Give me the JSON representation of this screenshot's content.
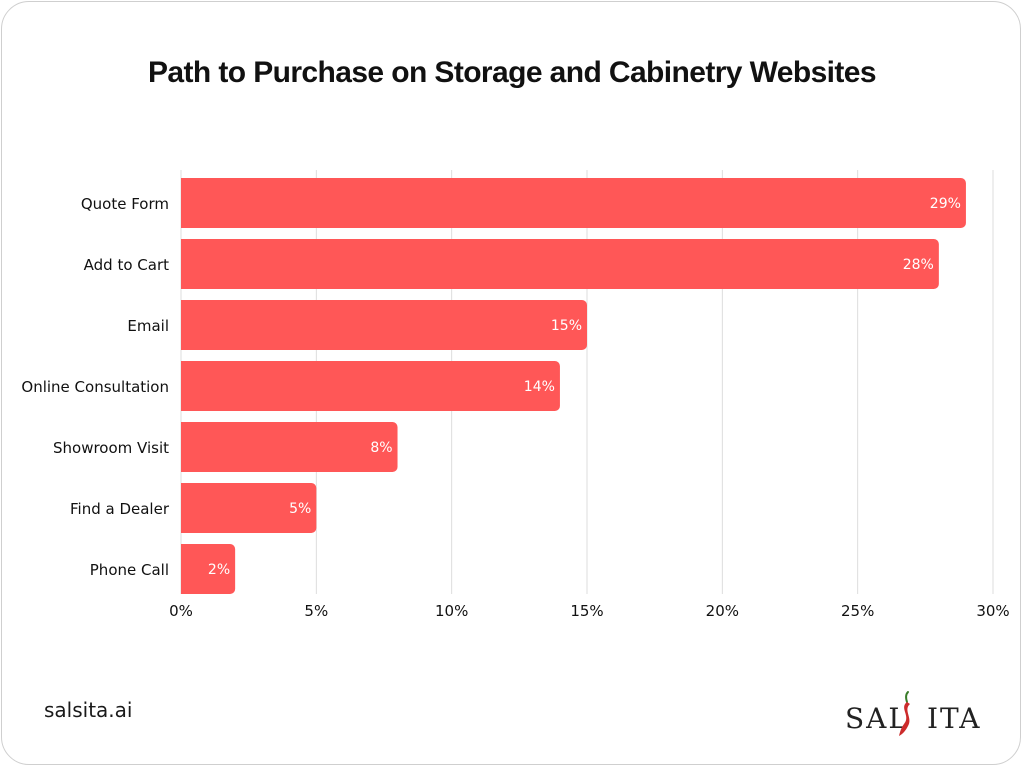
{
  "colors": {
    "bar": "#ff5757",
    "grid": "#dddddd",
    "text": "#111111",
    "logo_accent": "#cc2b2b"
  },
  "footer": {
    "url": "salsita.ai"
  },
  "logo": {
    "text_left": "SAL",
    "text_right": "ITA",
    "mark_icon": "chili-pepper-icon"
  },
  "chart_data": {
    "type": "bar",
    "orientation": "horizontal",
    "title": "Path to Purchase on Storage and Cabinetry Websites",
    "categories": [
      "Quote Form",
      "Add to Cart",
      "Email",
      "Online Consultation",
      "Showroom Visit",
      "Find a Dealer",
      "Phone Call"
    ],
    "values": [
      29,
      28,
      15,
      14,
      8,
      5,
      2
    ],
    "value_labels": [
      "29%",
      "28%",
      "15%",
      "14%",
      "8%",
      "5%",
      "2%"
    ],
    "xlim": [
      0,
      30
    ],
    "x_ticks": [
      0,
      5,
      10,
      15,
      20,
      25,
      30
    ],
    "x_tick_labels": [
      "0%",
      "5%",
      "10%",
      "15%",
      "20%",
      "25%",
      "30%"
    ],
    "grid": "vertical",
    "legend": "none"
  }
}
